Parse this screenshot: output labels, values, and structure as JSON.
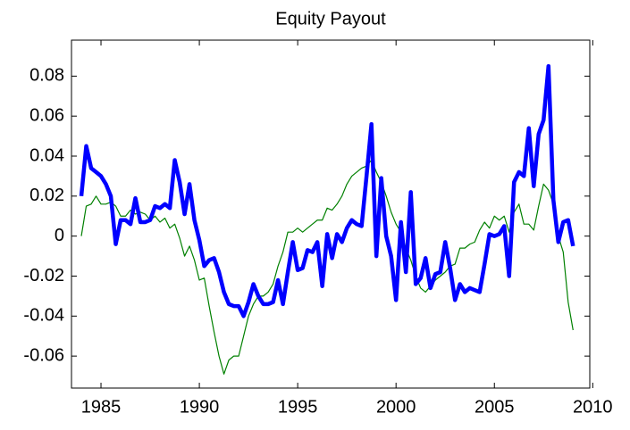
{
  "chart_data": {
    "type": "line",
    "title": "Equity Payout",
    "x": [
      1984,
      1984.25,
      1984.5,
      1984.75,
      1985,
      1985.25,
      1985.5,
      1985.75,
      1986,
      1986.25,
      1986.5,
      1986.75,
      1987,
      1987.25,
      1987.5,
      1987.75,
      1988,
      1988.25,
      1988.5,
      1988.75,
      1989,
      1989.25,
      1989.5,
      1989.75,
      1990,
      1990.25,
      1990.5,
      1990.75,
      1991,
      1991.25,
      1991.5,
      1991.75,
      1992,
      1992.25,
      1992.5,
      1992.75,
      1993,
      1993.25,
      1993.5,
      1993.75,
      1994,
      1994.25,
      1994.5,
      1994.75,
      1995,
      1995.25,
      1995.5,
      1995.75,
      1996,
      1996.25,
      1996.5,
      1996.75,
      1997,
      1997.25,
      1997.5,
      1997.75,
      1998,
      1998.25,
      1998.5,
      1998.75,
      1999,
      1999.25,
      1999.5,
      1999.75,
      2000,
      2000.25,
      2000.5,
      2000.75,
      2001,
      2001.25,
      2001.5,
      2001.75,
      2002,
      2002.25,
      2002.5,
      2002.75,
      2003,
      2003.25,
      2003.5,
      2003.75,
      2004,
      2004.25,
      2004.5,
      2004.75,
      2005,
      2005.25,
      2005.5,
      2005.75,
      2006,
      2006.25,
      2006.5,
      2006.75,
      2007,
      2007.25,
      2007.5,
      2007.75,
      2008,
      2008.25,
      2008.5,
      2008.75,
      2009
    ],
    "series": [
      {
        "color": "#0000ff",
        "values": [
          0.02,
          0.045,
          0.034,
          0.032,
          0.03,
          0.026,
          0.02,
          -0.004,
          0.008,
          0.008,
          0.006,
          0.019,
          0.007,
          0.007,
          0.008,
          0.015,
          0.014,
          0.016,
          0.014,
          0.038,
          0.027,
          0.011,
          0.026,
          0.008,
          -0.002,
          -0.015,
          -0.012,
          -0.011,
          -0.018,
          -0.028,
          -0.034,
          -0.035,
          -0.035,
          -0.04,
          -0.033,
          -0.024,
          -0.03,
          -0.034,
          -0.034,
          -0.033,
          -0.022,
          -0.034,
          -0.018,
          -0.003,
          -0.017,
          -0.016,
          -0.007,
          -0.008,
          -0.003,
          -0.025,
          0.001,
          -0.011,
          0.001,
          -0.003,
          0.004,
          0.008,
          0.006,
          0.005,
          0.03,
          0.056,
          -0.01,
          0.029,
          0.0,
          -0.01,
          -0.032,
          0.007,
          -0.018,
          0.022,
          -0.024,
          -0.021,
          -0.011,
          -0.026,
          -0.019,
          -0.018,
          -0.003,
          -0.016,
          -0.032,
          -0.024,
          -0.028,
          -0.026,
          -0.027,
          -0.028,
          -0.014,
          0.001,
          0.0,
          0.001,
          0.005,
          -0.02,
          0.027,
          0.032,
          0.03,
          0.054,
          0.025,
          0.051,
          0.058,
          0.085,
          0.018,
          -0.003,
          0.007,
          0.008,
          -0.005
        ]
      },
      {
        "color": "#008000",
        "values": [
          0.0,
          0.015,
          0.016,
          0.02,
          0.016,
          0.016,
          0.017,
          0.015,
          0.01,
          0.01,
          0.013,
          0.011,
          0.012,
          0.011,
          0.008,
          0.01,
          0.007,
          0.009,
          0.004,
          0.006,
          -0.001,
          -0.01,
          -0.005,
          -0.012,
          -0.022,
          -0.021,
          -0.035,
          -0.048,
          -0.06,
          -0.069,
          -0.062,
          -0.06,
          -0.06,
          -0.05,
          -0.04,
          -0.034,
          -0.03,
          -0.03,
          -0.028,
          -0.024,
          -0.015,
          -0.008,
          0.002,
          0.002,
          0.004,
          0.002,
          0.004,
          0.006,
          0.008,
          0.008,
          0.014,
          0.013,
          0.016,
          0.02,
          0.026,
          0.03,
          0.032,
          0.034,
          0.035,
          0.038,
          0.032,
          0.027,
          0.02,
          0.012,
          0.006,
          0.002,
          -0.006,
          -0.012,
          -0.02,
          -0.026,
          -0.028,
          -0.025,
          -0.022,
          -0.02,
          -0.018,
          -0.015,
          -0.014,
          -0.006,
          -0.006,
          -0.004,
          -0.003,
          0.003,
          0.007,
          0.004,
          0.01,
          0.008,
          0.01,
          0.002,
          0.012,
          0.016,
          0.006,
          0.006,
          0.003,
          0.015,
          0.026,
          0.023,
          0.016,
          0.0,
          -0.008,
          -0.033,
          -0.047
        ]
      }
    ],
    "xlim": [
      1983.5,
      2009.85
    ],
    "xticks": [
      1985,
      1990,
      1995,
      2000,
      2005,
      2010
    ],
    "ylim": [
      -0.076,
      0.098
    ],
    "yticks": [
      -0.06,
      -0.04,
      -0.02,
      0,
      0.02,
      0.04,
      0.06,
      0.08
    ]
  }
}
